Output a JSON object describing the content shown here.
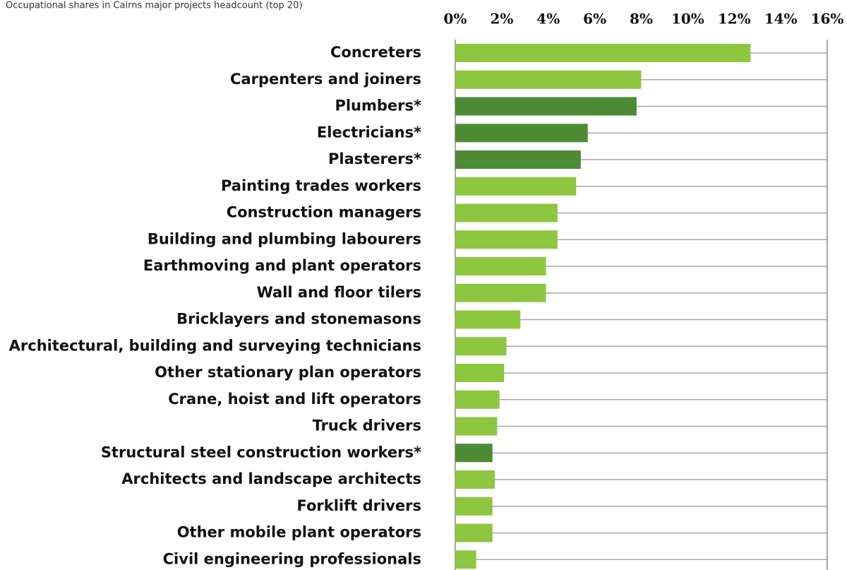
{
  "chart_data": {
    "type": "bar",
    "orientation": "horizontal",
    "title": "Occupational shares in Cairns major projects headcount (top 20)",
    "categories": [
      "Concreters",
      "Carpenters and joiners",
      "Plumbers*",
      "Electricians*",
      "Plasterers*",
      "Painting trades workers",
      "Construction managers",
      "Building and plumbing labourers",
      "Earthmoving and plant operators",
      "Wall and floor tilers",
      "Bricklayers and stonemasons",
      "Architectural, building and surveying technicians",
      "Other stationary plan operators",
      "Crane, hoist and lift operators",
      "Truck drivers",
      "Structural steel construction workers*",
      "Architects and landscape architects",
      "Forklift drivers",
      "Other mobile plant operators",
      "Civil engineering professionals"
    ],
    "values": [
      12.7,
      8.0,
      7.8,
      5.7,
      5.4,
      5.2,
      4.4,
      4.4,
      3.9,
      3.9,
      2.8,
      2.2,
      2.1,
      1.9,
      1.8,
      1.6,
      1.7,
      1.6,
      1.6,
      0.9
    ],
    "colors": [
      "#8dc63f",
      "#8dc63f",
      "#4d8a34",
      "#4d8a34",
      "#4d8a34",
      "#8dc63f",
      "#8dc63f",
      "#8dc63f",
      "#8dc63f",
      "#8dc63f",
      "#8dc63f",
      "#8dc63f",
      "#8dc63f",
      "#8dc63f",
      "#8dc63f",
      "#4d8a34",
      "#8dc63f",
      "#8dc63f",
      "#8dc63f",
      "#8dc63f"
    ],
    "xlim": [
      0,
      16
    ],
    "xticks": [
      {
        "value": 0,
        "label": "0%"
      },
      {
        "value": 2,
        "label": "2%"
      },
      {
        "value": 4,
        "label": "4%"
      },
      {
        "value": 6,
        "label": "6%"
      },
      {
        "value": 8,
        "label": "8%"
      },
      {
        "value": 10,
        "label": "10%"
      },
      {
        "value": 12,
        "label": "12%"
      },
      {
        "value": 14,
        "label": "14%"
      },
      {
        "value": 16,
        "label": "16%"
      }
    ]
  }
}
